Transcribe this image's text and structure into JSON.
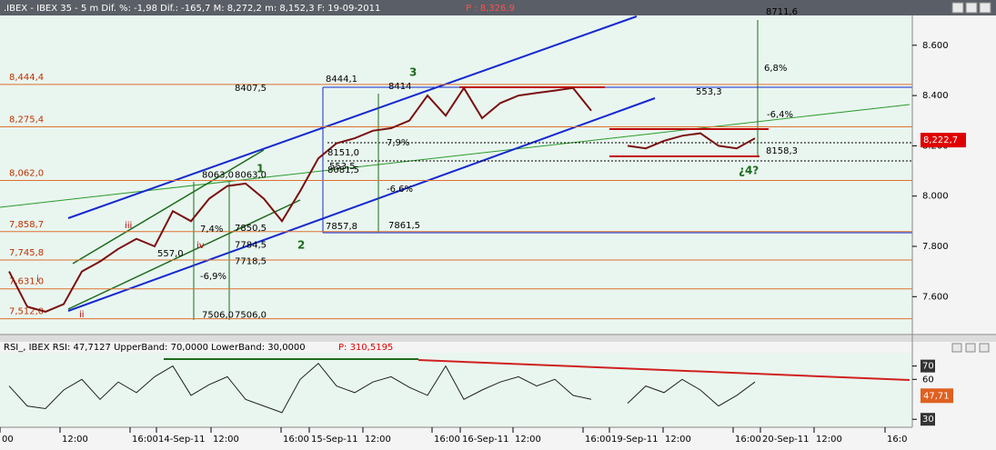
{
  "header": {
    "text": ".IBEX - IBEX 35 -  5 m Dif. %: -1,98 Dif.: -165,7 M: 8,272,2 m: 8,152,3 F: 19-09-2011",
    "last": "P : 8,326,9"
  },
  "chart_data": [
    {
      "type": "line",
      "color": "#7a1010",
      "categories": [
        null,
        null,
        null,
        null,
        null,
        null,
        null,
        null,
        null,
        null,
        null,
        null,
        null,
        null,
        null,
        null,
        null,
        null,
        null,
        null,
        null,
        null,
        null,
        null,
        null,
        null,
        null,
        null,
        null,
        null,
        null,
        null,
        null,
        null,
        null,
        null,
        null,
        null,
        null,
        null,
        null,
        null,
        null,
        null,
        null,
        null,
        null,
        null,
        null,
        null
      ],
      "values": [
        7700,
        7560,
        7540,
        7570,
        7700,
        7740,
        7790,
        7830,
        7800,
        7940,
        7900,
        7990,
        8040,
        8050,
        7990,
        7900,
        8020,
        8150,
        8210,
        8230,
        8260,
        8270,
        8300,
        8400,
        8320,
        8430,
        8310,
        8370,
        8400,
        8410,
        8420,
        8430,
        8340,
        null,
        8200,
        8190,
        8220,
        8240,
        8250,
        8200,
        8190,
        8230,
        null,
        null,
        null,
        null,
        null,
        null,
        null,
        null
      ],
      "ylim": [
        7460,
        8715
      ],
      "yticks": [
        {
          "value": 7600,
          "label": "7.600"
        },
        {
          "value": 7800,
          "label": "7.800"
        },
        {
          "value": 8000,
          "label": "8.000"
        },
        {
          "value": 8200,
          "label": "8.200"
        },
        {
          "value": 8400,
          "label": "8.400"
        },
        {
          "value": 8600,
          "label": "8.600"
        }
      ],
      "current": {
        "value": 8222.7,
        "label": "8,222,7"
      },
      "levels": [
        {
          "value": 8444.4,
          "label": "8,444,4"
        },
        {
          "value": 8275.4,
          "label": "8,275,4"
        },
        {
          "value": 8062.0,
          "label": "8,062,0"
        },
        {
          "value": 7858.7,
          "label": "7,858,7"
        },
        {
          "value": 7745.8,
          "label": "7,745,8"
        },
        {
          "value": 7631.0,
          "label": "7,631,0"
        },
        {
          "value": 7512.0,
          "label": "7,512,0"
        }
      ],
      "price_notes": [
        {
          "value": 8711.6,
          "label": "8711,6"
        },
        {
          "value": 8444.1,
          "label": "8444,1"
        },
        {
          "value": 8407.5,
          "label": "8407,5"
        },
        {
          "value": 8414,
          "label": "8414"
        },
        {
          "value": 8151.0,
          "label": "8151,0"
        },
        {
          "value": 8081.5,
          "label": "8081,5"
        },
        {
          "value": 8063.0,
          "label": "8063,0"
        },
        {
          "value": 8063.0,
          "label": "8063,0"
        },
        {
          "value": 7850.5,
          "label": "7850,5"
        },
        {
          "value": 7784.5,
          "label": "7784,5"
        },
        {
          "value": 7718.5,
          "label": "7718,5"
        },
        {
          "value": 7506.0,
          "label": "7506,0"
        },
        {
          "value": 7506.0,
          "label": "7506,0"
        },
        {
          "value": 7857.8,
          "label": "7857,8"
        },
        {
          "value": 7861.5,
          "label": "7861,5"
        },
        {
          "value": 8158.3,
          "label": "8158,3"
        }
      ],
      "notes": [
        "3",
        "1",
        "2",
        "¿4?",
        "6,8%",
        "553,3",
        "-6,4%",
        "7,9%",
        "-6,6%",
        "553,5",
        "7,4%",
        "-6,9%",
        "557,0",
        "iii",
        "iv",
        "ii",
        "i"
      ]
    },
    {
      "type": "line",
      "color": "#202020",
      "title": "RSI_, IBEX RSI: 47,7127 UpperBand: 70,0000 LowerBand: 30,0000",
      "title_p": "P: 310,5195",
      "categories": [
        null,
        null,
        null,
        null,
        null,
        null,
        null,
        null,
        null,
        null,
        null,
        null,
        null,
        null,
        null,
        null,
        null,
        null,
        null,
        null,
        null,
        null,
        null,
        null,
        null,
        null,
        null,
        null,
        null,
        null,
        null,
        null,
        null,
        null,
        null,
        null,
        null,
        null,
        null,
        null,
        null,
        null,
        null,
        null,
        null,
        null,
        null,
        null,
        null,
        null
      ],
      "values": [
        55,
        40,
        38,
        52,
        60,
        45,
        58,
        50,
        62,
        70,
        48,
        56,
        62,
        45,
        40,
        35,
        60,
        72,
        55,
        50,
        58,
        62,
        54,
        48,
        70,
        45,
        52,
        58,
        62,
        55,
        60,
        48,
        45,
        null,
        42,
        55,
        50,
        60,
        52,
        40,
        48,
        58,
        null,
        null,
        null,
        null,
        null,
        null,
        null,
        null
      ],
      "ylim": [
        24,
        80
      ],
      "yticks": [
        30,
        60,
        70
      ],
      "current": {
        "value": 47.71,
        "label": "47,71"
      },
      "xlabels": [
        "00",
        "12:00",
        "16:00",
        "14-Sep-11",
        "12:00",
        "16:00",
        "15-Sep-11",
        "12:00",
        "16:00",
        "16-Sep-11",
        "12:00",
        "16:00",
        "19-Sep-11",
        "12:00",
        "16:00",
        "20-Sep-11",
        "12:00",
        "16:0"
      ]
    }
  ]
}
